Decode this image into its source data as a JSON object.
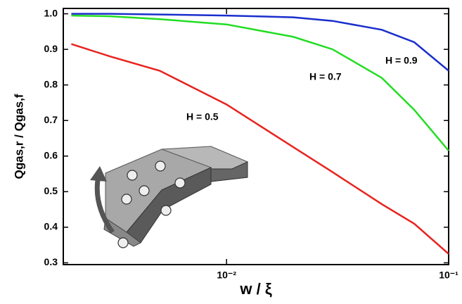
{
  "chart_data": {
    "type": "line",
    "xlabel": "w  /  ξ",
    "ylabel": "Qgas,r / Qgas,f",
    "x": [
      0.002,
      0.003,
      0.005,
      0.01,
      0.02,
      0.03,
      0.05,
      0.07,
      0.1
    ],
    "series": [
      {
        "name": "H = 0.5",
        "color": "#e8231f",
        "values": [
          0.915,
          0.88,
          0.84,
          0.745,
          0.625,
          0.555,
          0.465,
          0.41,
          0.325
        ]
      },
      {
        "name": "H = 0.7",
        "color": "#22dd22",
        "values": [
          0.995,
          0.993,
          0.985,
          0.97,
          0.935,
          0.9,
          0.82,
          0.73,
          0.615
        ]
      },
      {
        "name": "H = 0.9",
        "color": "#1a2ecc",
        "values": [
          1.0,
          1.0,
          0.998,
          0.995,
          0.99,
          0.98,
          0.955,
          0.92,
          0.84
        ]
      }
    ],
    "xscale": "log",
    "xlim": [
      0.00184,
      0.1
    ],
    "xticks": [
      {
        "value": 0.01,
        "label": "10⁻²"
      },
      {
        "value": 0.1,
        "label": "10⁻¹"
      }
    ],
    "ylim": [
      0.295,
      1.015
    ],
    "yticks": [
      0.3,
      0.4,
      0.5,
      0.6,
      0.7,
      0.8,
      0.9,
      {
        "value": 1,
        "label": "1.0"
      }
    ],
    "grid": false
  }
}
